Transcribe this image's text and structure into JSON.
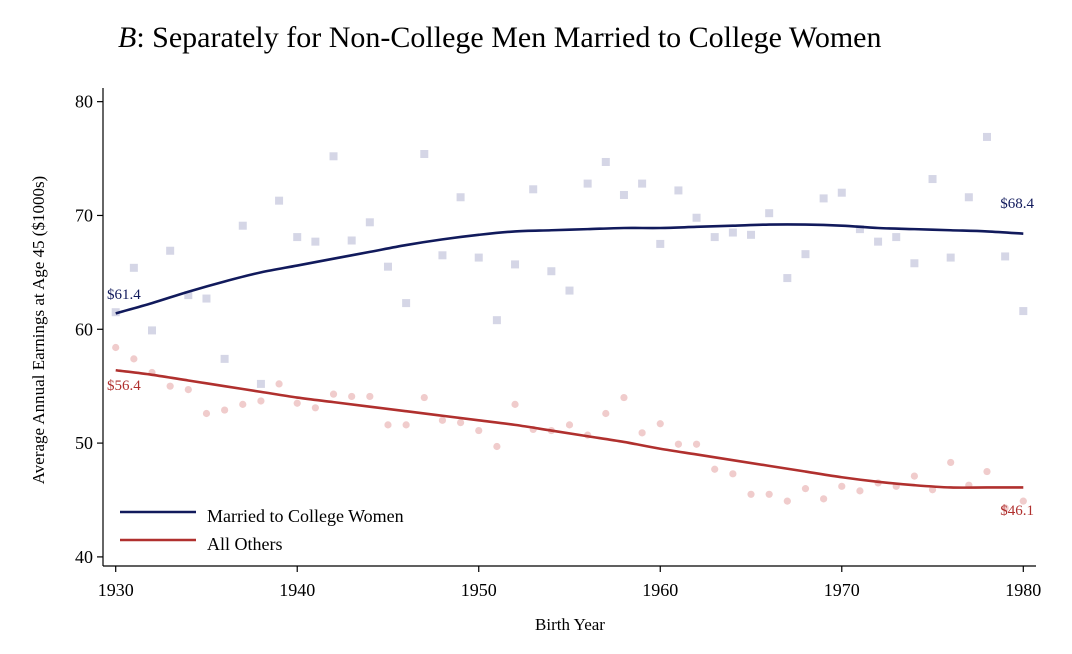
{
  "chart_data": {
    "type": "scatter",
    "title_prefix": "B",
    "title_rest": ": Separately for Non-College Men Married to College Women",
    "xlabel": "Birth Year",
    "ylabel": "Average Annual Earnings at Age 45 ($1000s)",
    "xlim": [
      1929.3,
      1980.7
    ],
    "ylim": [
      39.2,
      81.2
    ],
    "xticks": [
      1930,
      1940,
      1950,
      1960,
      1970,
      1980
    ],
    "yticks": [
      40,
      50,
      60,
      70,
      80
    ],
    "legend_position": "bottom-left",
    "colors": {
      "navy": "#111a5c",
      "navy_point": "#d5d6e6",
      "red": "#b0302e",
      "red_point": "#f0cccc"
    },
    "series": [
      {
        "name": "Married to College Women",
        "marker": "square",
        "points": [
          [
            1930,
            61.5
          ],
          [
            1931,
            65.4
          ],
          [
            1932,
            59.9
          ],
          [
            1933,
            66.9
          ],
          [
            1934,
            63.0
          ],
          [
            1935,
            62.7
          ],
          [
            1936,
            57.4
          ],
          [
            1937,
            69.1
          ],
          [
            1938,
            55.2
          ],
          [
            1939,
            71.3
          ],
          [
            1940,
            68.1
          ],
          [
            1941,
            67.7
          ],
          [
            1942,
            75.2
          ],
          [
            1943,
            67.8
          ],
          [
            1944,
            69.4
          ],
          [
            1945,
            65.5
          ],
          [
            1946,
            62.3
          ],
          [
            1947,
            75.4
          ],
          [
            1948,
            66.5
          ],
          [
            1949,
            71.6
          ],
          [
            1950,
            66.3
          ],
          [
            1951,
            60.8
          ],
          [
            1952,
            65.7
          ],
          [
            1953,
            72.3
          ],
          [
            1954,
            65.1
          ],
          [
            1955,
            63.4
          ],
          [
            1956,
            72.8
          ],
          [
            1957,
            74.7
          ],
          [
            1958,
            71.8
          ],
          [
            1959,
            72.8
          ],
          [
            1960,
            67.5
          ],
          [
            1961,
            72.2
          ],
          [
            1962,
            69.8
          ],
          [
            1963,
            68.1
          ],
          [
            1964,
            68.5
          ],
          [
            1965,
            68.3
          ],
          [
            1966,
            70.2
          ],
          [
            1967,
            64.5
          ],
          [
            1968,
            66.6
          ],
          [
            1969,
            71.5
          ],
          [
            1970,
            72.0
          ],
          [
            1971,
            68.8
          ],
          [
            1972,
            67.7
          ],
          [
            1973,
            68.1
          ],
          [
            1974,
            65.8
          ],
          [
            1975,
            73.2
          ],
          [
            1976,
            66.3
          ],
          [
            1977,
            71.6
          ],
          [
            1978,
            76.9
          ],
          [
            1979,
            66.4
          ],
          [
            1980,
            61.6
          ]
        ],
        "fitted": [
          [
            1930,
            61.4
          ],
          [
            1932,
            62.3
          ],
          [
            1934,
            63.3
          ],
          [
            1936,
            64.2
          ],
          [
            1938,
            65.0
          ],
          [
            1940,
            65.6
          ],
          [
            1942,
            66.2
          ],
          [
            1944,
            66.8
          ],
          [
            1946,
            67.4
          ],
          [
            1948,
            67.9
          ],
          [
            1950,
            68.3
          ],
          [
            1952,
            68.6
          ],
          [
            1954,
            68.7
          ],
          [
            1956,
            68.8
          ],
          [
            1958,
            68.9
          ],
          [
            1960,
            68.9
          ],
          [
            1962,
            69.0
          ],
          [
            1964,
            69.1
          ],
          [
            1966,
            69.2
          ],
          [
            1968,
            69.2
          ],
          [
            1970,
            69.1
          ],
          [
            1972,
            68.9
          ],
          [
            1974,
            68.8
          ],
          [
            1976,
            68.7
          ],
          [
            1978,
            68.6
          ],
          [
            1980,
            68.4
          ]
        ],
        "end_labels": {
          "start": "$61.4",
          "end": "$68.4"
        }
      },
      {
        "name": "All Others",
        "marker": "circle",
        "points": [
          [
            1930,
            58.4
          ],
          [
            1931,
            57.4
          ],
          [
            1932,
            56.2
          ],
          [
            1933,
            55.0
          ],
          [
            1934,
            54.7
          ],
          [
            1935,
            52.6
          ],
          [
            1936,
            52.9
          ],
          [
            1937,
            53.4
          ],
          [
            1938,
            53.7
          ],
          [
            1939,
            55.2
          ],
          [
            1940,
            53.5
          ],
          [
            1941,
            53.1
          ],
          [
            1942,
            54.3
          ],
          [
            1943,
            54.1
          ],
          [
            1944,
            54.1
          ],
          [
            1945,
            51.6
          ],
          [
            1946,
            51.6
          ],
          [
            1947,
            54.0
          ],
          [
            1948,
            52.0
          ],
          [
            1949,
            51.8
          ],
          [
            1950,
            51.1
          ],
          [
            1951,
            49.7
          ],
          [
            1952,
            53.4
          ],
          [
            1953,
            51.2
          ],
          [
            1954,
            51.1
          ],
          [
            1955,
            51.6
          ],
          [
            1956,
            50.7
          ],
          [
            1957,
            52.6
          ],
          [
            1958,
            54.0
          ],
          [
            1959,
            50.9
          ],
          [
            1960,
            51.7
          ],
          [
            1961,
            49.9
          ],
          [
            1962,
            49.9
          ],
          [
            1963,
            47.7
          ],
          [
            1964,
            47.3
          ],
          [
            1965,
            45.5
          ],
          [
            1966,
            45.5
          ],
          [
            1967,
            44.9
          ],
          [
            1968,
            46.0
          ],
          [
            1969,
            45.1
          ],
          [
            1970,
            46.2
          ],
          [
            1971,
            45.8
          ],
          [
            1972,
            46.5
          ],
          [
            1973,
            46.2
          ],
          [
            1974,
            47.1
          ],
          [
            1975,
            45.9
          ],
          [
            1976,
            48.3
          ],
          [
            1977,
            46.3
          ],
          [
            1978,
            47.5
          ],
          [
            1979,
            44.3
          ],
          [
            1980,
            44.9
          ]
        ],
        "fitted": [
          [
            1930,
            56.4
          ],
          [
            1932,
            56.0
          ],
          [
            1934,
            55.5
          ],
          [
            1936,
            55.0
          ],
          [
            1938,
            54.5
          ],
          [
            1940,
            54.0
          ],
          [
            1942,
            53.6
          ],
          [
            1944,
            53.2
          ],
          [
            1946,
            52.8
          ],
          [
            1948,
            52.4
          ],
          [
            1950,
            52.0
          ],
          [
            1952,
            51.6
          ],
          [
            1954,
            51.1
          ],
          [
            1956,
            50.6
          ],
          [
            1958,
            50.1
          ],
          [
            1960,
            49.5
          ],
          [
            1962,
            49.0
          ],
          [
            1964,
            48.5
          ],
          [
            1966,
            48.0
          ],
          [
            1968,
            47.5
          ],
          [
            1970,
            47.0
          ],
          [
            1972,
            46.6
          ],
          [
            1974,
            46.3
          ],
          [
            1976,
            46.1
          ],
          [
            1978,
            46.1
          ],
          [
            1980,
            46.1
          ]
        ],
        "end_labels": {
          "start": "$56.4",
          "end": "$46.1"
        }
      }
    ]
  }
}
